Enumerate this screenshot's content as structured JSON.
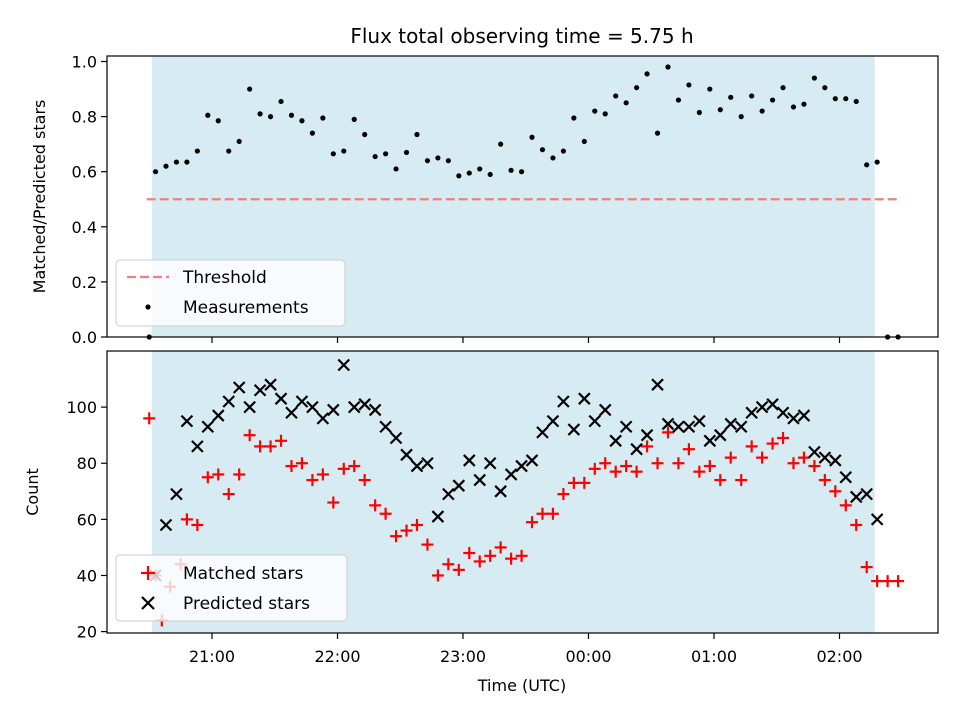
{
  "chart_data": [
    {
      "type": "scatter",
      "title": "Flux total observing time = 5.75 h",
      "ylabel": "Matched/Predicted stars",
      "xlabel": "",
      "ylim": [
        0,
        1.02
      ],
      "yticks": [
        "0.0",
        "0.2",
        "0.4",
        "0.6",
        "0.8",
        "1.0"
      ],
      "shaded_span_hours": [
        20.52,
        2.28
      ],
      "threshold": {
        "name": "Threshold",
        "value": 0.5,
        "x_range": [
          20.48,
          2.47
        ],
        "color": "#f08080"
      },
      "legend": {
        "placement": "lower-left",
        "entries": [
          "Threshold",
          "Measurements"
        ]
      },
      "series": [
        {
          "name": "Measurements",
          "color": "#000000",
          "marker": "dot",
          "points": [
            [
              "20:30",
              0.0
            ],
            [
              "20:33",
              0.6
            ],
            [
              "20:38",
              0.62
            ],
            [
              "20:43",
              0.635
            ],
            [
              "20:48",
              0.635
            ],
            [
              "20:53",
              0.675
            ],
            [
              "20:58",
              0.805
            ],
            [
              "21:03",
              0.785
            ],
            [
              "21:08",
              0.675
            ],
            [
              "21:13",
              0.71
            ],
            [
              "21:18",
              0.9
            ],
            [
              "21:23",
              0.81
            ],
            [
              "21:28",
              0.8
            ],
            [
              "21:33",
              0.855
            ],
            [
              "21:38",
              0.805
            ],
            [
              "21:43",
              0.785
            ],
            [
              "21:48",
              0.74
            ],
            [
              "21:53",
              0.795
            ],
            [
              "21:58",
              0.665
            ],
            [
              "22:03",
              0.675
            ],
            [
              "22:08",
              0.79
            ],
            [
              "22:13",
              0.735
            ],
            [
              "22:18",
              0.655
            ],
            [
              "22:23",
              0.665
            ],
            [
              "22:28",
              0.61
            ],
            [
              "22:33",
              0.67
            ],
            [
              "22:38",
              0.735
            ],
            [
              "22:43",
              0.64
            ],
            [
              "22:48",
              0.65
            ],
            [
              "22:53",
              0.64
            ],
            [
              "22:58",
              0.585
            ],
            [
              "23:03",
              0.595
            ],
            [
              "23:08",
              0.61
            ],
            [
              "23:13",
              0.59
            ],
            [
              "23:18",
              0.7
            ],
            [
              "23:23",
              0.605
            ],
            [
              "23:28",
              0.6
            ],
            [
              "23:33",
              0.725
            ],
            [
              "23:38",
              0.68
            ],
            [
              "23:43",
              0.65
            ],
            [
              "23:48",
              0.675
            ],
            [
              "23:53",
              0.795
            ],
            [
              "23:58",
              0.71
            ],
            [
              "00:03",
              0.82
            ],
            [
              "00:08",
              0.81
            ],
            [
              "00:13",
              0.875
            ],
            [
              "00:18",
              0.85
            ],
            [
              "00:23",
              0.905
            ],
            [
              "00:28",
              0.955
            ],
            [
              "00:33",
              0.74
            ],
            [
              "00:38",
              0.98
            ],
            [
              "00:43",
              0.86
            ],
            [
              "00:48",
              0.915
            ],
            [
              "00:53",
              0.815
            ],
            [
              "00:58",
              0.9
            ],
            [
              "01:03",
              0.825
            ],
            [
              "01:08",
              0.87
            ],
            [
              "01:13",
              0.8
            ],
            [
              "01:18",
              0.875
            ],
            [
              "01:23",
              0.82
            ],
            [
              "01:28",
              0.86
            ],
            [
              "01:33",
              0.905
            ],
            [
              "01:38",
              0.835
            ],
            [
              "01:43",
              0.845
            ],
            [
              "01:48",
              0.94
            ],
            [
              "01:53",
              0.905
            ],
            [
              "01:58",
              0.865
            ],
            [
              "02:03",
              0.865
            ],
            [
              "02:08",
              0.855
            ],
            [
              "02:13",
              0.625
            ],
            [
              "02:18",
              0.635
            ],
            [
              "02:23",
              0.0
            ],
            [
              "02:28",
              0.0
            ]
          ]
        }
      ]
    },
    {
      "type": "scatter",
      "title": "",
      "ylabel": "Count",
      "xlabel": "Time (UTC)",
      "ylim": [
        19.5,
        120
      ],
      "yticks": [
        "20",
        "40",
        "60",
        "80",
        "100"
      ],
      "xticks": [
        "21:00",
        "22:00",
        "23:00",
        "00:00",
        "01:00",
        "02:00"
      ],
      "shaded_span_hours": [
        20.52,
        2.28
      ],
      "legend": {
        "placement": "lower-left",
        "entries": [
          "Matched stars",
          "Predicted stars"
        ]
      },
      "series": [
        {
          "name": "Matched stars",
          "color": "#ff0000",
          "marker": "plus",
          "points": [
            [
              "20:30",
              96
            ],
            [
              "20:33",
              40
            ],
            [
              "20:36",
              24
            ],
            [
              "20:40",
              36
            ],
            [
              "20:45",
              44
            ],
            [
              "20:48",
              60
            ],
            [
              "20:53",
              58
            ],
            [
              "20:58",
              75
            ],
            [
              "21:03",
              76
            ],
            [
              "21:08",
              69
            ],
            [
              "21:13",
              76
            ],
            [
              "21:18",
              90
            ],
            [
              "21:23",
              86
            ],
            [
              "21:28",
              86
            ],
            [
              "21:33",
              88
            ],
            [
              "21:38",
              79
            ],
            [
              "21:43",
              80
            ],
            [
              "21:48",
              74
            ],
            [
              "21:53",
              76
            ],
            [
              "21:58",
              66
            ],
            [
              "22:03",
              78
            ],
            [
              "22:08",
              79
            ],
            [
              "22:13",
              74
            ],
            [
              "22:18",
              65
            ],
            [
              "22:23",
              62
            ],
            [
              "22:28",
              54
            ],
            [
              "22:33",
              56
            ],
            [
              "22:38",
              58
            ],
            [
              "22:43",
              51
            ],
            [
              "22:48",
              40
            ],
            [
              "22:53",
              44
            ],
            [
              "22:58",
              42
            ],
            [
              "23:03",
              48
            ],
            [
              "23:08",
              45
            ],
            [
              "23:13",
              47
            ],
            [
              "23:18",
              50
            ],
            [
              "23:23",
              46
            ],
            [
              "23:28",
              47
            ],
            [
              "23:33",
              59
            ],
            [
              "23:38",
              62
            ],
            [
              "23:43",
              62
            ],
            [
              "23:48",
              69
            ],
            [
              "23:53",
              73
            ],
            [
              "23:58",
              73
            ],
            [
              "00:03",
              78
            ],
            [
              "00:08",
              80
            ],
            [
              "00:13",
              77
            ],
            [
              "00:18",
              79
            ],
            [
              "00:23",
              77
            ],
            [
              "00:28",
              86
            ],
            [
              "00:33",
              80
            ],
            [
              "00:38",
              91
            ],
            [
              "00:43",
              80
            ],
            [
              "00:48",
              85
            ],
            [
              "00:53",
              77
            ],
            [
              "00:58",
              79
            ],
            [
              "01:03",
              74
            ],
            [
              "01:08",
              82
            ],
            [
              "01:13",
              74
            ],
            [
              "01:18",
              86
            ],
            [
              "01:23",
              82
            ],
            [
              "01:28",
              87
            ],
            [
              "01:33",
              89
            ],
            [
              "01:38",
              80
            ],
            [
              "01:43",
              82
            ],
            [
              "01:48",
              79
            ],
            [
              "01:53",
              74
            ],
            [
              "01:58",
              70
            ],
            [
              "02:03",
              65
            ],
            [
              "02:08",
              58
            ],
            [
              "02:13",
              43
            ],
            [
              "02:18",
              38
            ],
            [
              "02:23",
              38
            ],
            [
              "02:28",
              38
            ]
          ]
        },
        {
          "name": "Predicted stars",
          "color": "#000000",
          "marker": "x",
          "points": [
            [
              "20:33",
              40
            ],
            [
              "20:38",
              58
            ],
            [
              "20:43",
              69
            ],
            [
              "20:48",
              95
            ],
            [
              "20:53",
              86
            ],
            [
              "20:58",
              93
            ],
            [
              "21:03",
              97
            ],
            [
              "21:08",
              102
            ],
            [
              "21:13",
              107
            ],
            [
              "21:18",
              100
            ],
            [
              "21:23",
              106
            ],
            [
              "21:28",
              108
            ],
            [
              "21:33",
              103
            ],
            [
              "21:38",
              98
            ],
            [
              "21:43",
              102
            ],
            [
              "21:48",
              100
            ],
            [
              "21:53",
              96
            ],
            [
              "21:58",
              99
            ],
            [
              "22:03",
              115
            ],
            [
              "22:08",
              100
            ],
            [
              "22:13",
              101
            ],
            [
              "22:18",
              99
            ],
            [
              "22:23",
              93
            ],
            [
              "22:28",
              89
            ],
            [
              "22:33",
              83
            ],
            [
              "22:38",
              79
            ],
            [
              "22:43",
              80
            ],
            [
              "22:48",
              61
            ],
            [
              "22:53",
              69
            ],
            [
              "22:58",
              72
            ],
            [
              "23:03",
              81
            ],
            [
              "23:08",
              74
            ],
            [
              "23:13",
              80
            ],
            [
              "23:18",
              70
            ],
            [
              "23:23",
              76
            ],
            [
              "23:28",
              79
            ],
            [
              "23:33",
              81
            ],
            [
              "23:38",
              91
            ],
            [
              "23:43",
              95
            ],
            [
              "23:48",
              102
            ],
            [
              "23:53",
              92
            ],
            [
              "23:58",
              103
            ],
            [
              "00:03",
              95
            ],
            [
              "00:08",
              99
            ],
            [
              "00:13",
              88
            ],
            [
              "00:18",
              93
            ],
            [
              "00:23",
              85
            ],
            [
              "00:28",
              90
            ],
            [
              "00:33",
              108
            ],
            [
              "00:38",
              94
            ],
            [
              "00:43",
              93
            ],
            [
              "00:48",
              93
            ],
            [
              "00:53",
              95
            ],
            [
              "00:58",
              88
            ],
            [
              "01:03",
              90
            ],
            [
              "01:08",
              94
            ],
            [
              "01:13",
              93
            ],
            [
              "01:18",
              98
            ],
            [
              "01:23",
              100
            ],
            [
              "01:28",
              101
            ],
            [
              "01:33",
              98
            ],
            [
              "01:38",
              96
            ],
            [
              "01:43",
              97
            ],
            [
              "01:48",
              84
            ],
            [
              "01:53",
              82
            ],
            [
              "01:58",
              81
            ],
            [
              "02:03",
              75
            ],
            [
              "02:08",
              68
            ],
            [
              "02:13",
              69
            ],
            [
              "02:18",
              60
            ]
          ]
        }
      ]
    }
  ]
}
